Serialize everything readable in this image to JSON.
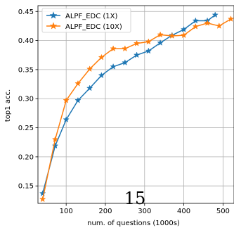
{
  "chart_data": {
    "type": "line",
    "xlabel": "num. of questions (1000s)",
    "ylabel": "top1 acc.",
    "xlim": [
      28,
      528
    ],
    "ylim": [
      0.12,
      0.46
    ],
    "x_ticks": [
      100,
      200,
      300,
      400,
      500
    ],
    "x_tick_labels": [
      "100",
      "200",
      "300",
      "400",
      "500"
    ],
    "y_ticks": [
      0.15,
      0.2,
      0.25,
      0.3,
      0.35,
      0.4,
      0.45
    ],
    "y_tick_labels": [
      "0.15",
      "0.20",
      "0.25",
      "0.30",
      "0.35",
      "0.40",
      "0.45"
    ],
    "grid": true,
    "legend_position": "top-left",
    "series": [
      {
        "name": "ALPF_EDC (1X)",
        "color": "#1f77b4",
        "marker": "star",
        "x": [
          40,
          72,
          100,
          130,
          160,
          190,
          220,
          250,
          280,
          310,
          340,
          370,
          400,
          430,
          460,
          480
        ],
        "y": [
          0.137,
          0.219,
          0.264,
          0.297,
          0.318,
          0.34,
          0.355,
          0.362,
          0.375,
          0.382,
          0.396,
          0.409,
          0.419,
          0.434,
          0.434,
          0.444
        ]
      },
      {
        "name": "ALPF_EDC (10X)",
        "color": "#ff7f0e",
        "marker": "star",
        "x": [
          40,
          72,
          100,
          130,
          160,
          190,
          220,
          250,
          280,
          310,
          340,
          370,
          400,
          430,
          460,
          490,
          520
        ],
        "y": [
          0.127,
          0.23,
          0.297,
          0.326,
          0.351,
          0.371,
          0.386,
          0.386,
          0.395,
          0.398,
          0.41,
          0.408,
          0.409,
          0.424,
          0.43,
          0.425,
          0.437
        ]
      }
    ]
  },
  "page_number": "15"
}
